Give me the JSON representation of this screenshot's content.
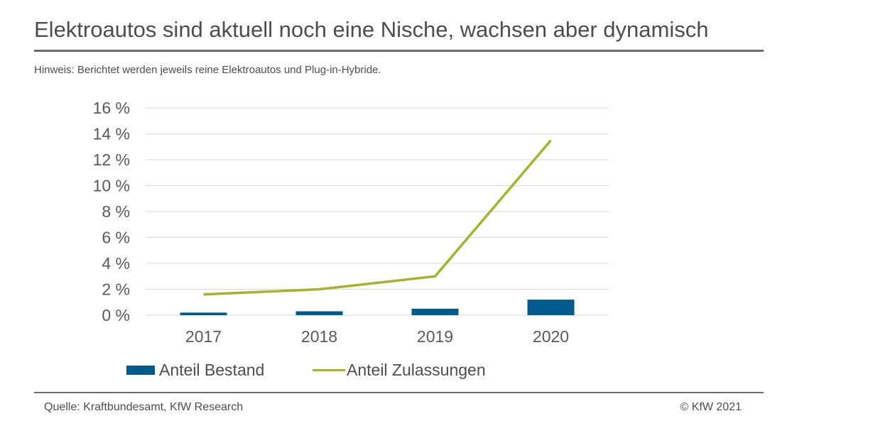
{
  "header": {
    "title": "Elektroautos sind aktuell noch eine Nische, wachsen aber dynamisch",
    "note": "Hinweis: Berichtet werden jeweils reine Elektroautos und Plug-in-Hybride."
  },
  "footer": {
    "source": "Quelle: Kraftbundesamt, KfW Research",
    "copyright": "© KfW 2021"
  },
  "chart_data": {
    "type": "bar",
    "categories": [
      "2017",
      "2018",
      "2019",
      "2020"
    ],
    "series": [
      {
        "name": "Anteil Bestand",
        "type": "bar",
        "color": "#005a8c",
        "values": [
          0.2,
          0.3,
          0.5,
          1.2
        ]
      },
      {
        "name": "Anteil Zulassungen",
        "type": "line",
        "color": "#a2b52c",
        "values": [
          1.6,
          2.0,
          3.0,
          13.5
        ]
      }
    ],
    "yticks": [
      "0 %",
      "2 %",
      "4 %",
      "6 %",
      "8 %",
      "10 %",
      "12 %",
      "14 %",
      "16 %"
    ],
    "ylim": [
      0,
      16
    ],
    "grid": true,
    "legend_position": "bottom"
  }
}
